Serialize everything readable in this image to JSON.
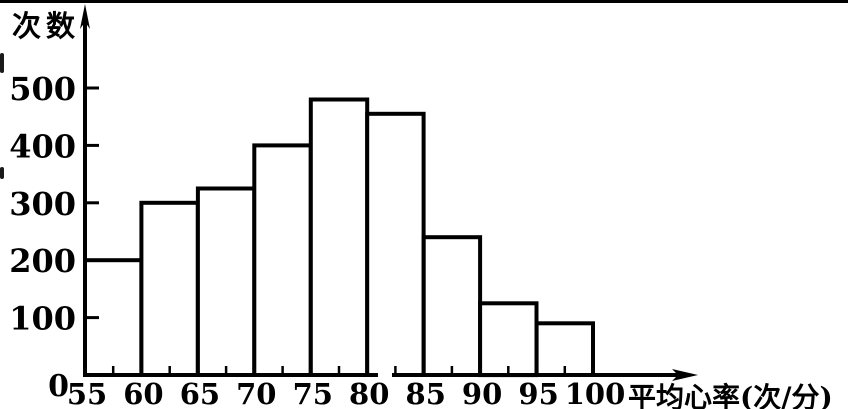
{
  "chart_data": {
    "type": "bar",
    "subtype": "histogram",
    "title": "",
    "ylabel": "次数",
    "xlabel": "平均心率(次/分)",
    "categories": [
      "55-60",
      "60-65",
      "65-70",
      "70-75",
      "75-80",
      "80-85",
      "85-90",
      "90-95",
      "95-100"
    ],
    "bin_edges": [
      55,
      60,
      65,
      70,
      75,
      80,
      85,
      90,
      95,
      100
    ],
    "values": [
      200,
      300,
      325,
      400,
      480,
      455,
      240,
      125,
      90
    ],
    "x_ticks": [
      55,
      60,
      65,
      70,
      75,
      80,
      85,
      90,
      95,
      100
    ],
    "x_minor_ticks": [
      57.5,
      62.5,
      67.5,
      72.5,
      77.5,
      82.5,
      87.5,
      92.5,
      97.5
    ],
    "y_ticks": [
      0,
      100,
      200,
      300,
      400,
      500
    ],
    "xlim": [
      55,
      100
    ],
    "ylim": [
      0,
      500
    ],
    "grid": false,
    "legend": false,
    "axis_arrows": true,
    "bar_fill": "#ffffff",
    "stroke_color": "#000000",
    "background": "#ffffff"
  }
}
